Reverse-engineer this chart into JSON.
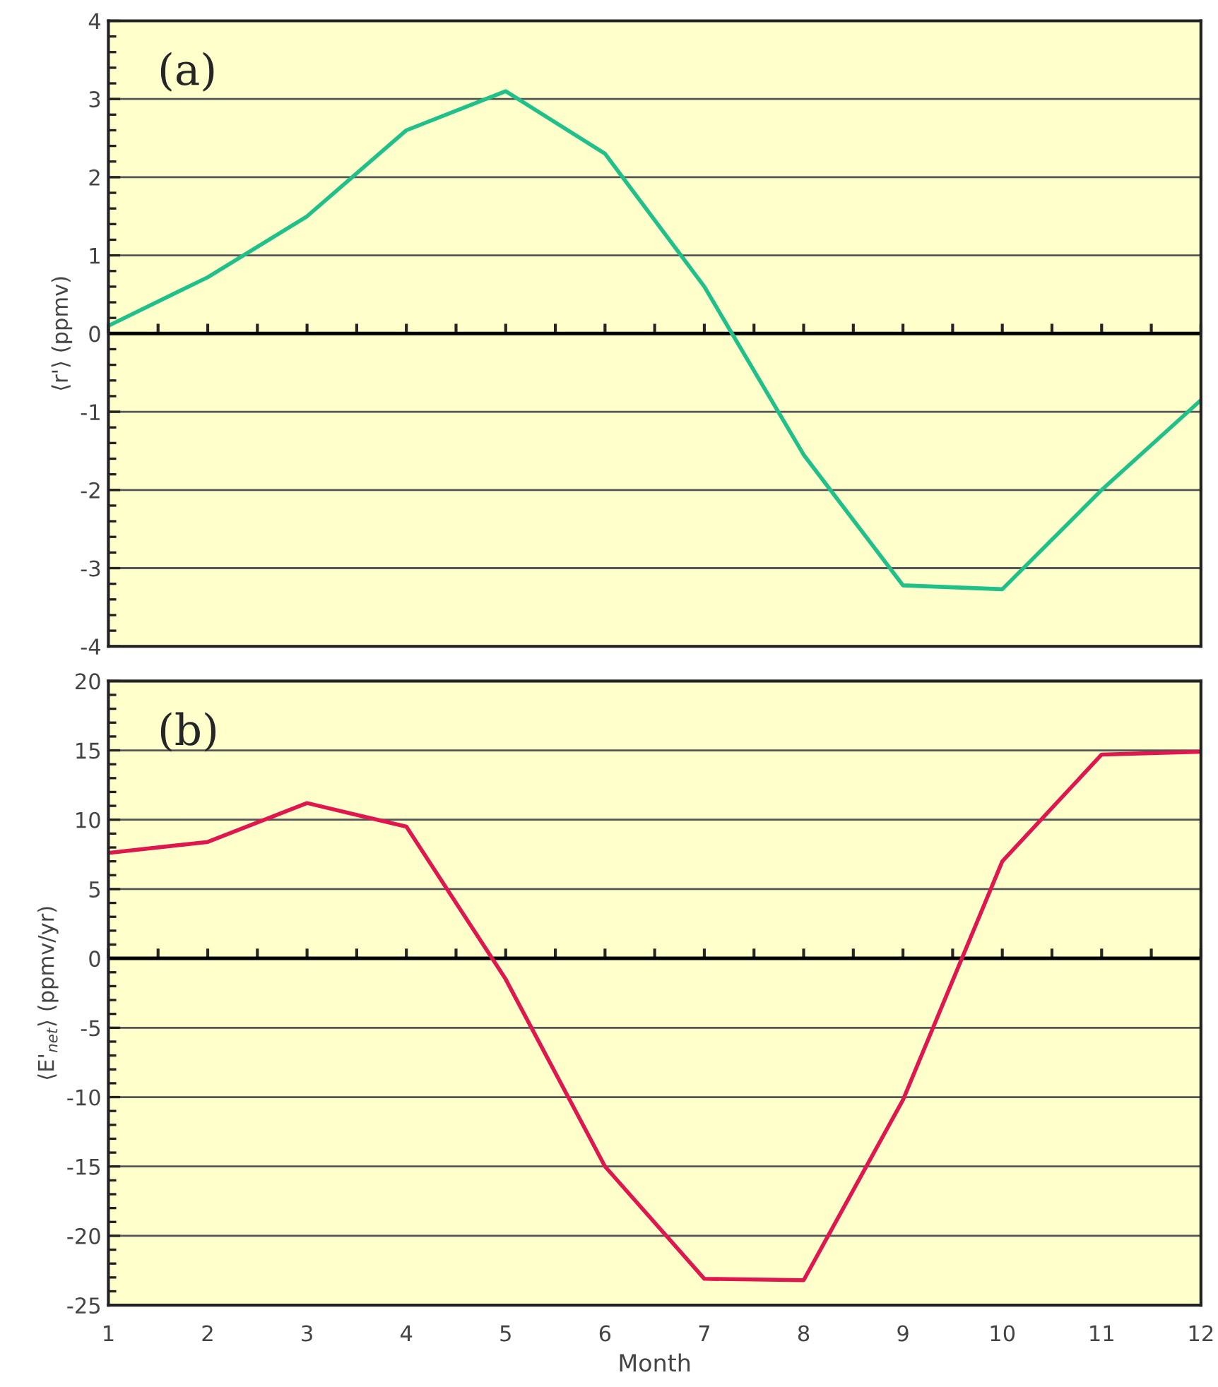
{
  "chart_data": [
    {
      "type": "line",
      "ylabel": "⟨r'⟩ (ppmv)",
      "annotations": [
        "(a)"
      ],
      "x": [
        1,
        2,
        3,
        4,
        5,
        6,
        7,
        8,
        9,
        10,
        11,
        12
      ],
      "series": [
        {
          "color": "#1fc08a",
          "values": [
            0.1,
            0.72,
            1.5,
            2.6,
            3.1,
            2.3,
            0.6,
            -1.55,
            -3.22,
            -3.27,
            -2.0,
            -0.85
          ]
        }
      ],
      "xlim": [
        1,
        12
      ],
      "xticks": [
        1,
        2,
        3,
        4,
        5,
        6,
        7,
        8,
        9,
        10,
        11,
        12
      ],
      "ylim": [
        -4,
        4
      ],
      "yticks": [
        -4,
        -3,
        -2,
        -1,
        0,
        1,
        2,
        3,
        4
      ],
      "grid": "y",
      "tick_labels": "y",
      "ref_lines": [
        {
          "axis": "y",
          "value": 0
        }
      ],
      "marker": "none",
      "line_style": "solid"
    },
    {
      "type": "line",
      "xlabel": "Month",
      "ylabel": "⟨E'$_{net}$⟩ (ppmv/yr)",
      "annotations": [
        "(b)"
      ],
      "x": [
        1,
        2,
        3,
        4,
        5,
        6,
        7,
        8,
        9,
        10,
        11,
        12
      ],
      "series": [
        {
          "color": "#e0164e",
          "values": [
            7.6,
            8.4,
            11.2,
            9.5,
            -1.5,
            -15,
            -23.1,
            -23.2,
            -10.2,
            7.0,
            14.7,
            14.9
          ]
        }
      ],
      "xlim": [
        1,
        12
      ],
      "xticks": [
        1,
        2,
        3,
        4,
        5,
        6,
        7,
        8,
        9,
        10,
        11,
        12
      ],
      "ylim": [
        -25,
        20
      ],
      "yticks": [
        -25,
        -20,
        -15,
        -10,
        -5,
        0,
        5,
        10,
        15,
        20
      ],
      "grid": "y",
      "ref_lines": [
        {
          "axis": "y",
          "value": 0
        }
      ],
      "marker": "none",
      "line_style": "solid"
    }
  ]
}
